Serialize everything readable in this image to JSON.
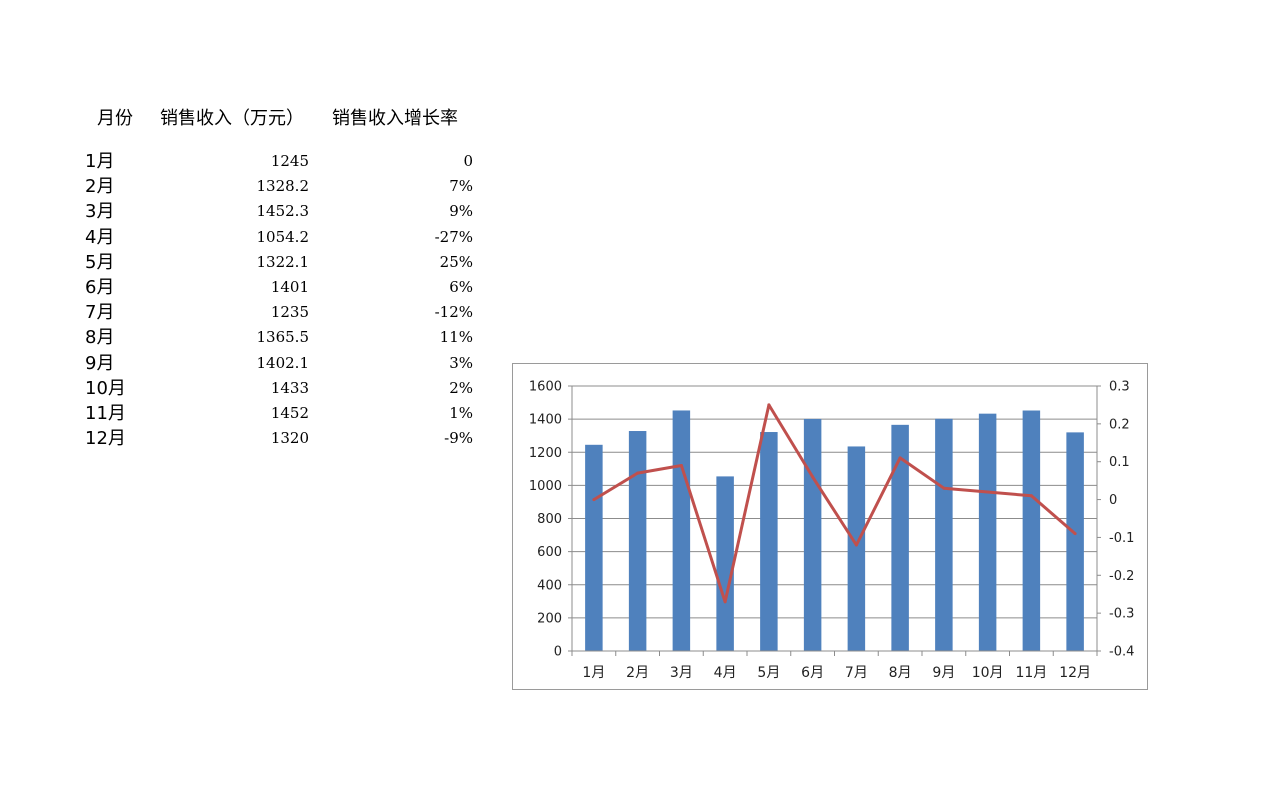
{
  "table": {
    "headers": [
      "月份",
      "销售收入（万元）",
      "销售收入增长率"
    ],
    "rows": [
      {
        "month": "1月",
        "revenue": "1245",
        "growth": "0"
      },
      {
        "month": "2月",
        "revenue": "1328.2",
        "growth": "7%"
      },
      {
        "month": "3月",
        "revenue": "1452.3",
        "growth": "9%"
      },
      {
        "month": "4月",
        "revenue": "1054.2",
        "growth": "-27%"
      },
      {
        "month": "5月",
        "revenue": "1322.1",
        "growth": "25%"
      },
      {
        "month": "6月",
        "revenue": "1401",
        "growth": "6%"
      },
      {
        "month": "7月",
        "revenue": "1235",
        "growth": "-12%"
      },
      {
        "month": "8月",
        "revenue": "1365.5",
        "growth": "11%"
      },
      {
        "month": "9月",
        "revenue": "1402.1",
        "growth": "3%"
      },
      {
        "month": "10月",
        "revenue": "1433",
        "growth": "2%"
      },
      {
        "month": "11月",
        "revenue": "1452",
        "growth": "1%"
      },
      {
        "month": "12月",
        "revenue": "1320",
        "growth": "-9%"
      }
    ]
  },
  "chart_data": {
    "type": "bar",
    "categories": [
      "1月",
      "2月",
      "3月",
      "4月",
      "5月",
      "6月",
      "7月",
      "8月",
      "9月",
      "10月",
      "11月",
      "12月"
    ],
    "series": [
      {
        "type": "bar",
        "axis": "left",
        "color": "#4f81bd",
        "values": [
          1245,
          1328.2,
          1452.3,
          1054.2,
          1322.1,
          1401,
          1235,
          1365.5,
          1402.1,
          1433,
          1452,
          1320
        ]
      },
      {
        "type": "line",
        "axis": "right",
        "color": "#c0504d",
        "values": [
          0,
          0.07,
          0.09,
          -0.27,
          0.25,
          0.06,
          -0.12,
          0.11,
          0.03,
          0.02,
          0.01,
          -0.09
        ]
      }
    ],
    "ylim": [
      0,
      1600
    ],
    "yticks": [
      "0",
      "200",
      "400",
      "600",
      "800",
      "1000",
      "1200",
      "1400",
      "1600"
    ],
    "y2lim": [
      -0.4,
      0.3
    ],
    "y2ticks": [
      "-0.4",
      "-0.3",
      "-0.2",
      "-0.1",
      "0",
      "0.1",
      "0.2",
      "0.3"
    ],
    "grid": true,
    "legend": "none"
  }
}
